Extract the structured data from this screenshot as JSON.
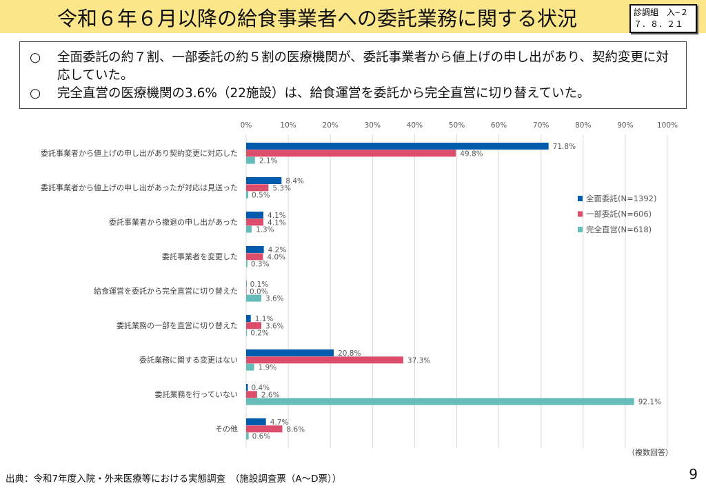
{
  "header": {
    "title": "令和６年６月以降の給食事業者への委託業務に関する状況",
    "doc_id_line1": "診調組　入−２",
    "doc_id_line2": "７．８．２１"
  },
  "summary": [
    "全面委託の約７割、一部委託の約５割の医療機関が、委託事業者から値上げの申し出があり、契約変更に対応していた。",
    "完全直営の医療機関の3.6%（22施設）は、給食運営を委託から完全直営に切り替えていた。"
  ],
  "summary_marker": "○",
  "chart_data": {
    "type": "bar",
    "orientation": "horizontal",
    "categories": [
      "委託事業者から値上げの申し出があり契約変更に対応した",
      "委託事業者から値上げの申し出があったが対応は見送った",
      "委託事業者から撤退の申し出があった",
      "委託事業者を変更した",
      "給食運営を委託から完全直営に切り替えた",
      "委託業務の一部を直営に切り替えた",
      "委託業務に関する変更はない",
      "委託業務を行っていない",
      "その他"
    ],
    "series": [
      {
        "name": "全面委託(N=1392)",
        "color": "#005bac",
        "values": [
          71.8,
          8.4,
          4.1,
          4.2,
          0.1,
          1.1,
          20.8,
          0.4,
          4.7
        ]
      },
      {
        "name": "一部委託(N=606)",
        "color": "#dc4d6c",
        "values": [
          49.8,
          5.3,
          4.1,
          4.0,
          0.0,
          3.6,
          37.3,
          2.6,
          8.6
        ]
      },
      {
        "name": "完全直営(N=618)",
        "color": "#66bcb8",
        "values": [
          2.1,
          0.5,
          1.3,
          0.3,
          3.6,
          0.2,
          1.9,
          92.1,
          0.6
        ]
      }
    ],
    "xticks": [
      "0%",
      "10%",
      "20%",
      "30%",
      "40%",
      "50%",
      "60%",
      "70%",
      "80%",
      "90%",
      "100%"
    ],
    "xlim": [
      0,
      100
    ],
    "grid": true,
    "legend": "right",
    "note": "（複数回答）"
  },
  "footer": {
    "source": "出典：令和7年度入院・外来医療等における実態調査　（施設調査票（A～D票））",
    "page": "9"
  }
}
